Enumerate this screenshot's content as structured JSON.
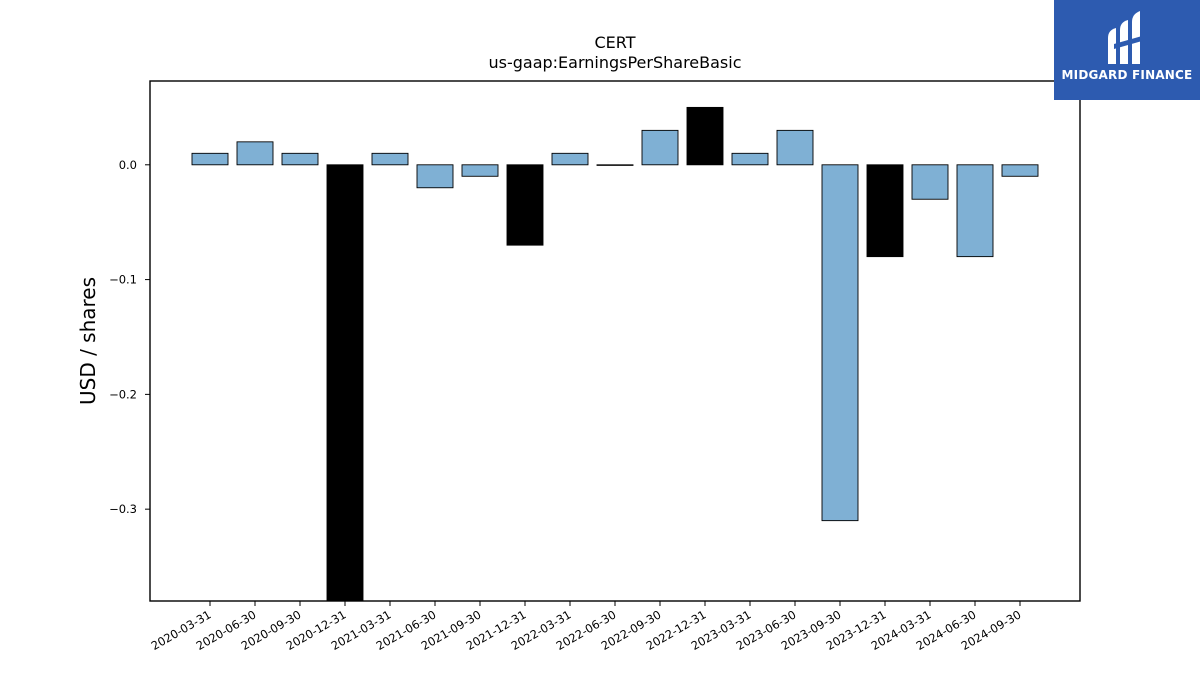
{
  "logo": {
    "text": "MIDGARD FINANCE",
    "color": "#2d5bb0"
  },
  "chart_data": {
    "type": "bar",
    "title": "CERT",
    "subtitle": "us-gaap:EarningsPerShareBasic",
    "xlabel": "",
    "ylabel": "USD / shares",
    "ylim": [
      -0.38,
      0.073
    ],
    "yticks": [
      0.0,
      -0.1,
      -0.2,
      -0.3
    ],
    "ytick_labels": [
      "0.0",
      "−0.1",
      "−0.2",
      "−0.3"
    ],
    "categories": [
      "2020-03-31",
      "2020-06-30",
      "2020-09-30",
      "2020-12-31",
      "2021-03-31",
      "2021-06-30",
      "2021-09-30",
      "2021-12-31",
      "2022-03-31",
      "2022-06-30",
      "2022-09-30",
      "2022-12-31",
      "2023-03-31",
      "2023-06-30",
      "2023-09-30",
      "2023-12-31",
      "2024-03-31",
      "2024-06-30",
      "2024-09-30"
    ],
    "values": [
      0.01,
      0.02,
      0.01,
      -0.38,
      0.01,
      -0.02,
      -0.01,
      -0.07,
      0.01,
      0.0,
      0.03,
      0.05,
      0.01,
      0.03,
      -0.31,
      -0.08,
      -0.03,
      -0.08,
      -0.01
    ],
    "highlight": [
      false,
      false,
      false,
      true,
      false,
      false,
      false,
      true,
      false,
      false,
      false,
      true,
      false,
      false,
      false,
      true,
      false,
      false,
      false
    ],
    "colors": {
      "normal": "#7fb0d4",
      "highlight": "#000000",
      "edge": "#000000"
    },
    "grid": false,
    "legend": "none"
  }
}
